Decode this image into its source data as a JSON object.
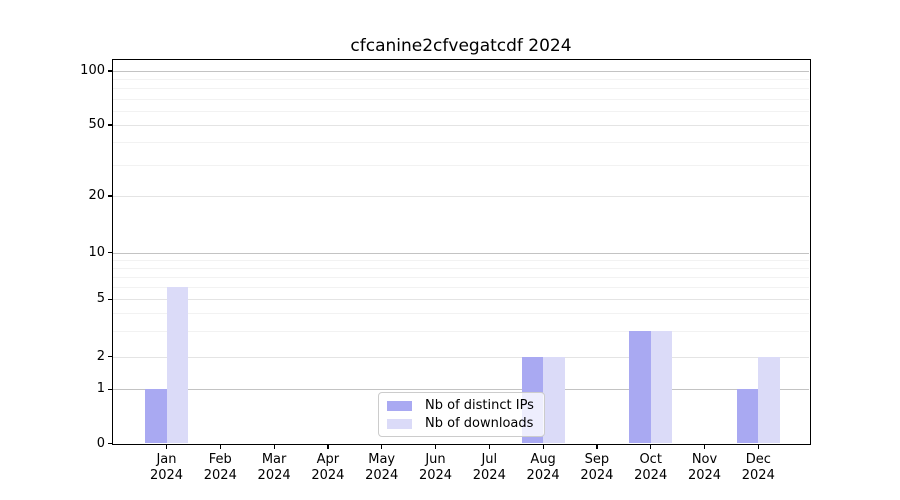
{
  "chart_data": {
    "type": "bar",
    "title": "cfcanine2cfvegatcdf 2024",
    "categories": [
      "Jan 2024",
      "Feb 2024",
      "Mar 2024",
      "Apr 2024",
      "May 2024",
      "Jun 2024",
      "Jul 2024",
      "Aug 2024",
      "Sep 2024",
      "Oct 2024",
      "Nov 2024",
      "Dec 2024"
    ],
    "series": [
      {
        "name": "Nb of distinct IPs",
        "color": "#a9a9f2",
        "values": [
          1,
          0,
          0,
          0,
          0,
          0,
          0,
          2,
          0,
          3,
          0,
          1
        ]
      },
      {
        "name": "Nb of downloads",
        "color": "#dbdbf8",
        "values": [
          6,
          0,
          0,
          0,
          0,
          0,
          0,
          2,
          0,
          3,
          0,
          2
        ]
      }
    ],
    "y_axis": {
      "scale": "log1p",
      "ticks": [
        0,
        1,
        2,
        5,
        10,
        20,
        50,
        100
      ],
      "minor_ticks": [
        3,
        4,
        6,
        7,
        8,
        9,
        30,
        40,
        60,
        70,
        80,
        90
      ],
      "range": [
        0,
        115
      ]
    },
    "x_axis": {
      "label_line2": "2024"
    },
    "grid": true,
    "legend": {
      "position": "inside-bottom-center"
    },
    "colors": {
      "axis": "#000000",
      "grid_decade": "#c3c3c3",
      "grid_labeled": "#e4e4e4",
      "grid_minor": "#f2f2f2",
      "background": "#ffffff"
    }
  }
}
